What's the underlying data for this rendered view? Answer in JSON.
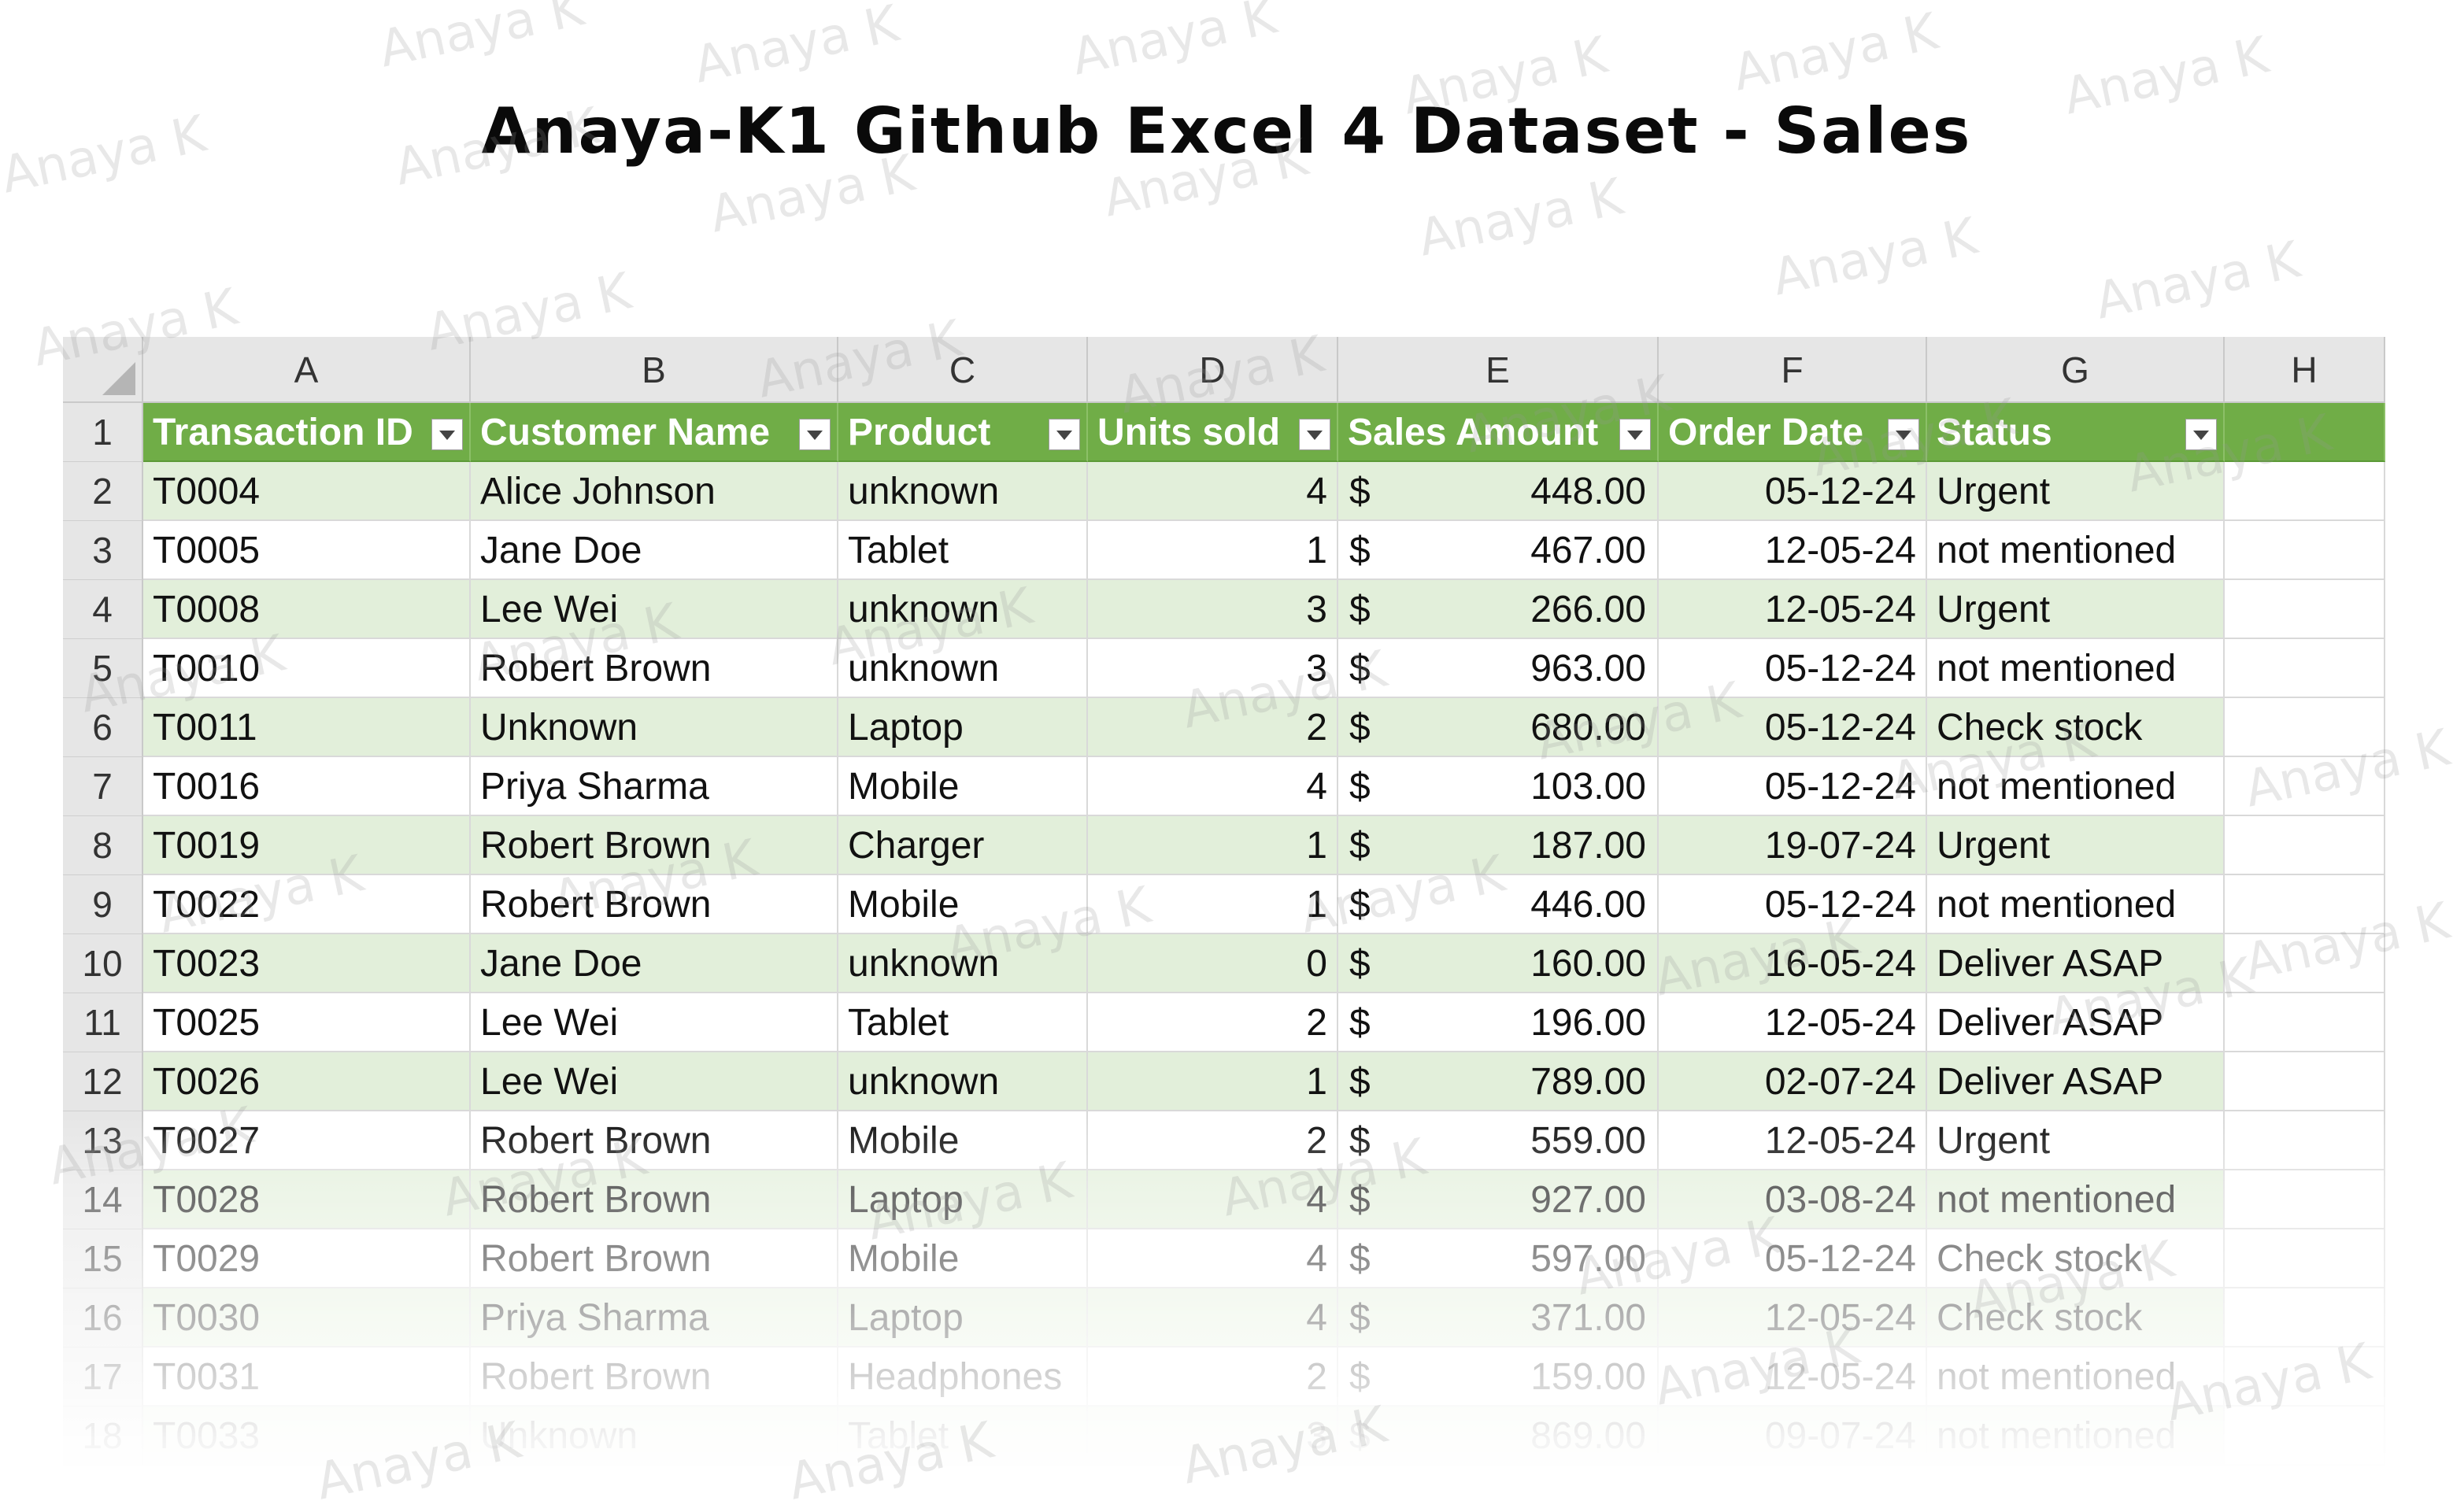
{
  "title": "Anaya-K1 Github Excel 4 Dataset - Sales",
  "watermark": "Anaya K",
  "columns": [
    "A",
    "B",
    "C",
    "D",
    "E",
    "F",
    "G",
    "H"
  ],
  "headers": [
    "Transaction ID",
    "Customer Name",
    "Product",
    "Units sold",
    "Sales Amount",
    "Order Date",
    "Status"
  ],
  "currency_symbol": "$",
  "rows": [
    {
      "n": "2",
      "id": "T0004",
      "name": "Alice Johnson",
      "product": "unknown",
      "units": "4",
      "amount": "448.00",
      "date": "05-12-24",
      "status": "Urgent"
    },
    {
      "n": "3",
      "id": "T0005",
      "name": "Jane Doe",
      "product": "Tablet",
      "units": "1",
      "amount": "467.00",
      "date": "12-05-24",
      "status": "not mentioned"
    },
    {
      "n": "4",
      "id": "T0008",
      "name": "Lee Wei",
      "product": "unknown",
      "units": "3",
      "amount": "266.00",
      "date": "12-05-24",
      "status": "Urgent"
    },
    {
      "n": "5",
      "id": "T0010",
      "name": "Robert Brown",
      "product": "unknown",
      "units": "3",
      "amount": "963.00",
      "date": "05-12-24",
      "status": "not mentioned"
    },
    {
      "n": "6",
      "id": "T0011",
      "name": "Unknown",
      "product": "Laptop",
      "units": "2",
      "amount": "680.00",
      "date": "05-12-24",
      "status": "Check stock"
    },
    {
      "n": "7",
      "id": "T0016",
      "name": "Priya Sharma",
      "product": "Mobile",
      "units": "4",
      "amount": "103.00",
      "date": "05-12-24",
      "status": "not mentioned"
    },
    {
      "n": "8",
      "id": "T0019",
      "name": "Robert Brown",
      "product": "Charger",
      "units": "1",
      "amount": "187.00",
      "date": "19-07-24",
      "status": "Urgent"
    },
    {
      "n": "9",
      "id": "T0022",
      "name": "Robert Brown",
      "product": "Mobile",
      "units": "1",
      "amount": "446.00",
      "date": "05-12-24",
      "status": "not mentioned"
    },
    {
      "n": "10",
      "id": "T0023",
      "name": "Jane Doe",
      "product": "unknown",
      "units": "0",
      "amount": "160.00",
      "date": "16-05-24",
      "status": "Deliver ASAP"
    },
    {
      "n": "11",
      "id": "T0025",
      "name": "Lee Wei",
      "product": "Tablet",
      "units": "2",
      "amount": "196.00",
      "date": "12-05-24",
      "status": "Deliver ASAP"
    },
    {
      "n": "12",
      "id": "T0026",
      "name": "Lee Wei",
      "product": "unknown",
      "units": "1",
      "amount": "789.00",
      "date": "02-07-24",
      "status": "Deliver ASAP"
    },
    {
      "n": "13",
      "id": "T0027",
      "name": "Robert Brown",
      "product": "Mobile",
      "units": "2",
      "amount": "559.00",
      "date": "12-05-24",
      "status": "Urgent"
    },
    {
      "n": "14",
      "id": "T0028",
      "name": "Robert Brown",
      "product": "Laptop",
      "units": "4",
      "amount": "927.00",
      "date": "03-08-24",
      "status": "not mentioned"
    },
    {
      "n": "15",
      "id": "T0029",
      "name": "Robert Brown",
      "product": "Mobile",
      "units": "4",
      "amount": "597.00",
      "date": "05-12-24",
      "status": "Check stock"
    },
    {
      "n": "16",
      "id": "T0030",
      "name": "Priya Sharma",
      "product": "Laptop",
      "units": "4",
      "amount": "371.00",
      "date": "12-05-24",
      "status": "Check stock"
    },
    {
      "n": "17",
      "id": "T0031",
      "name": "Robert Brown",
      "product": "Headphones",
      "units": "2",
      "amount": "159.00",
      "date": "12-05-24",
      "status": "not mentioned"
    },
    {
      "n": "18",
      "id": "T0033",
      "name": "Unknown",
      "product": "Tablet",
      "units": "3",
      "amount": "869.00",
      "date": "09-07-24",
      "status": "not mentioned"
    }
  ],
  "colors": {
    "header_green": "#70ad47",
    "band_green": "#e2efda"
  }
}
